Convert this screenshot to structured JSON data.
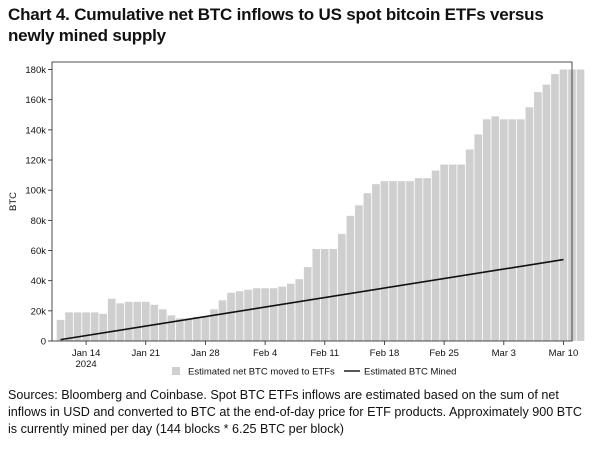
{
  "title": "Chart 4. Cumulative net BTC inflows to US spot bitcoin ETFs versus newly mined supply",
  "source": "Sources: Bloomberg and Coinbase. Spot BTC ETFs inflows are estimated based on the sum of net inflows in USD and converted to BTC at the end-of-day price for ETF products. Approximately 900 BTC is currently mined per day (144 blocks * 6.25 BTC per block)",
  "colors": {
    "bar": "#cfcfcf",
    "line": "#111111"
  },
  "chart_data": {
    "type": "bar",
    "ylabel": "BTC",
    "ylim": [
      0,
      185000
    ],
    "yticks": [
      0,
      20000,
      40000,
      60000,
      80000,
      100000,
      120000,
      140000,
      160000,
      180000
    ],
    "ytick_labels": [
      "0",
      "20k",
      "40k",
      "60k",
      "80k",
      "100k",
      "120k",
      "140k",
      "160k",
      "180k"
    ],
    "x_start": "2024-01-11",
    "xlim": [
      "2024-01-10",
      "2024-03-11"
    ],
    "xticks": [
      {
        "date": "2024-01-14",
        "label": "Jan 14",
        "sublabel": "2024"
      },
      {
        "date": "2024-01-21",
        "label": "Jan 21"
      },
      {
        "date": "2024-01-28",
        "label": "Jan 28"
      },
      {
        "date": "2024-02-04",
        "label": "Feb 4"
      },
      {
        "date": "2024-02-11",
        "label": "Feb 11"
      },
      {
        "date": "2024-02-18",
        "label": "Feb 18"
      },
      {
        "date": "2024-02-25",
        "label": "Feb 25"
      },
      {
        "date": "2024-03-03",
        "label": "Mar 3"
      },
      {
        "date": "2024-03-10",
        "label": "Mar 10"
      }
    ],
    "legend": {
      "position": "bottom-center"
    },
    "grid": false,
    "series": [
      {
        "name": "Estimated net BTC moved to ETFs",
        "kind": "bar",
        "values": [
          14000,
          19000,
          19000,
          19000,
          19000,
          18000,
          28000,
          25000,
          26000,
          26000,
          26000,
          24000,
          21000,
          17000,
          15000,
          15000,
          16000,
          16000,
          21000,
          27000,
          32000,
          33000,
          34000,
          35000,
          35000,
          35000,
          36000,
          38000,
          41000,
          49000,
          61000,
          61000,
          61000,
          71000,
          83000,
          90000,
          98000,
          104000,
          106000,
          106000,
          106000,
          106000,
          108000,
          108000,
          113000,
          117000,
          117000,
          117000,
          127000,
          137000,
          147000,
          149000,
          147000,
          147000,
          147000,
          155000,
          165000,
          170000,
          177000,
          180000,
          180000,
          180000
        ]
      },
      {
        "name": "Estimated BTC Mined",
        "kind": "line",
        "points": [
          {
            "date": "2024-01-11",
            "value": 900
          },
          {
            "date": "2024-03-10",
            "value": 54000
          }
        ]
      }
    ]
  }
}
